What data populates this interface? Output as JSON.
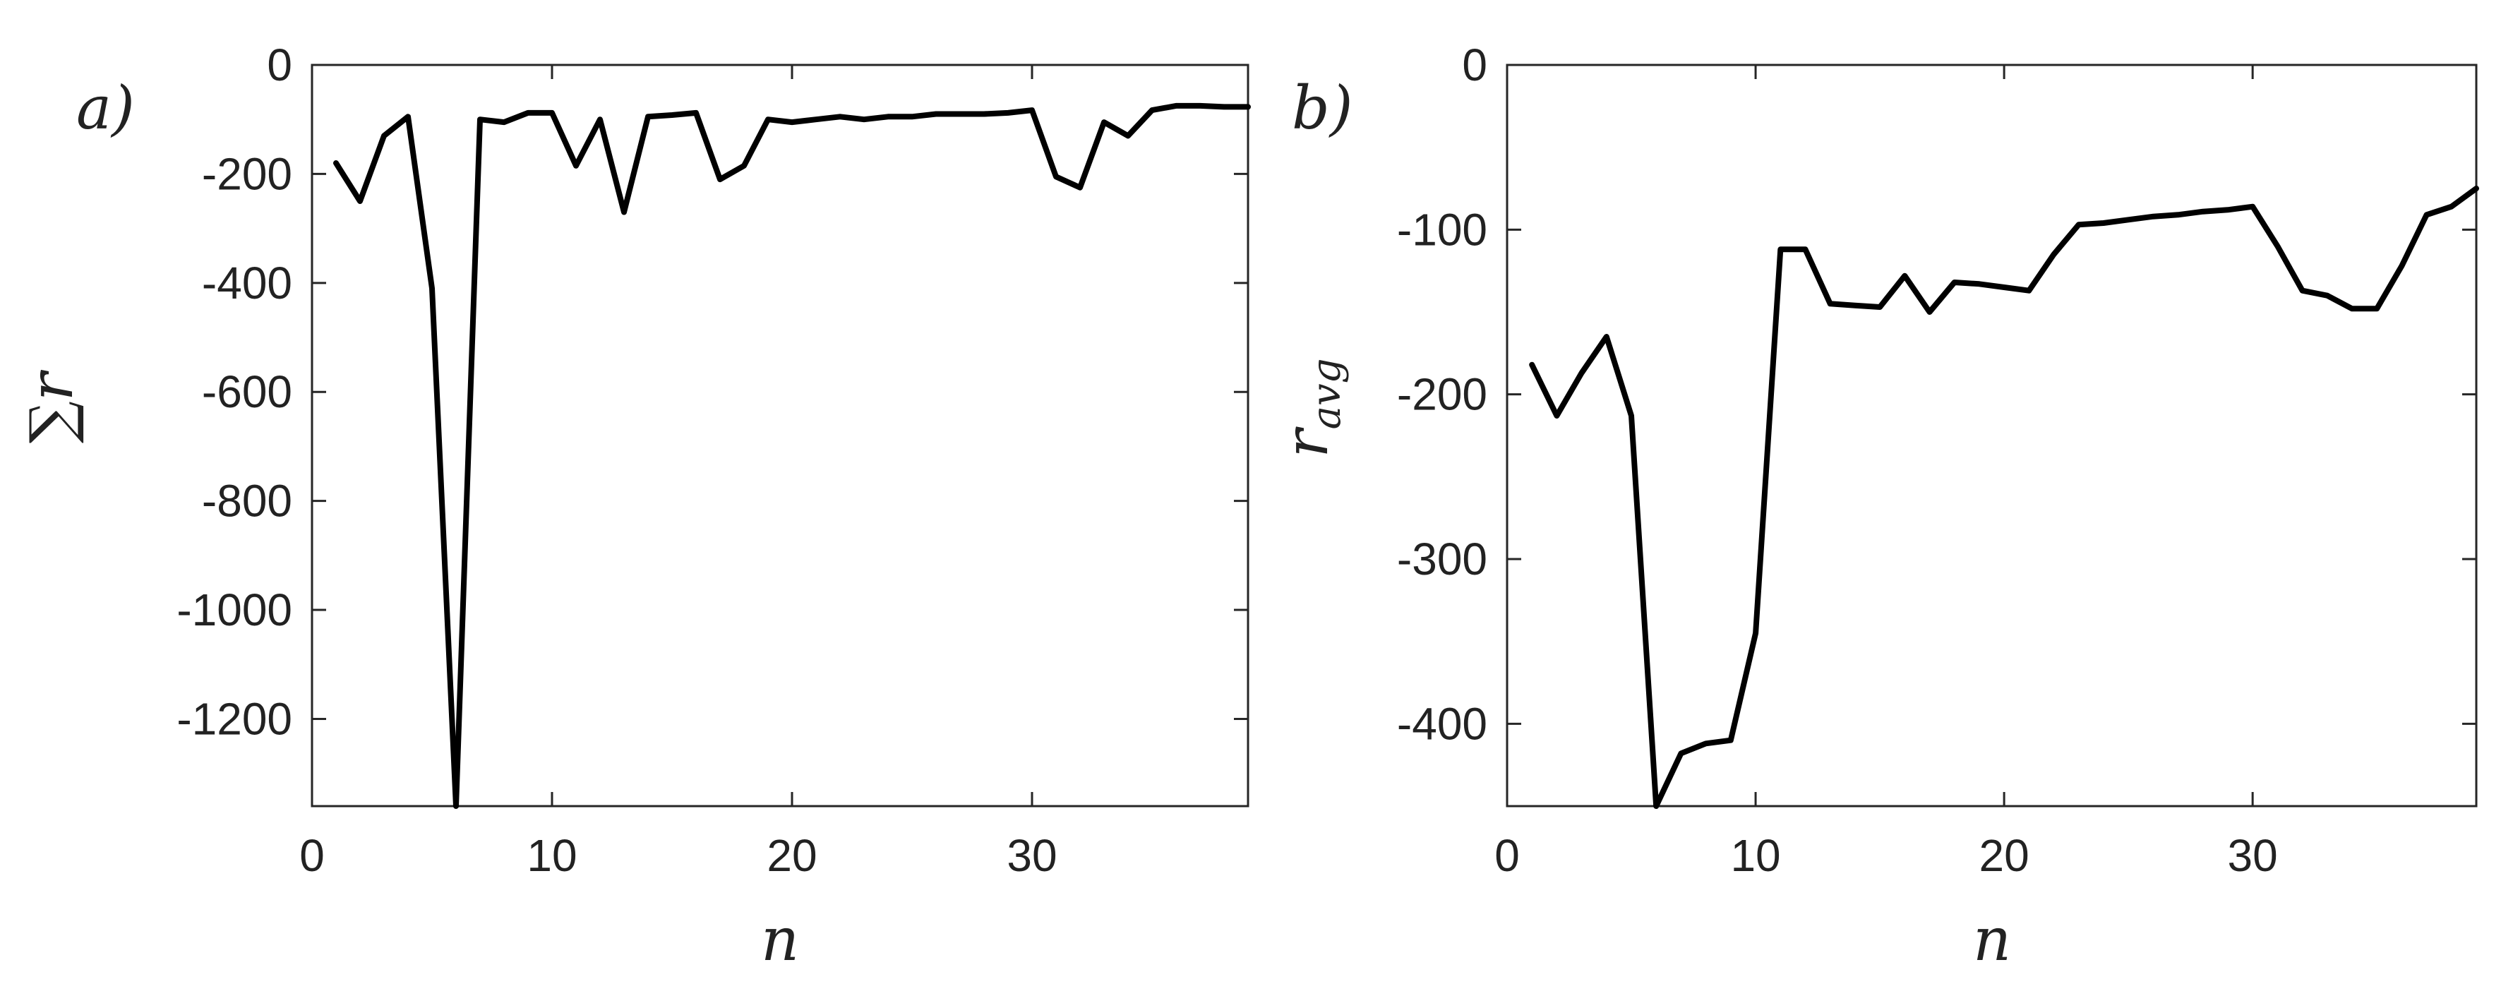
{
  "chart_data": [
    {
      "type": "line",
      "panel_label": "a)",
      "xlabel": "n",
      "ylabel": "∑r",
      "xlim": [
        0,
        39
      ],
      "ylim": [
        -1360,
        0
      ],
      "xticks": [
        0,
        10,
        20,
        30
      ],
      "yticks": [
        0,
        -200,
        -400,
        -600,
        -800,
        -1000,
        -1200
      ],
      "grid": false,
      "series": [
        {
          "color": "#000000",
          "x": [
            1,
            2,
            3,
            4,
            5,
            6,
            7,
            8,
            9,
            10,
            11,
            12,
            13,
            14,
            15,
            16,
            17,
            18,
            19,
            20,
            21,
            22,
            23,
            24,
            25,
            26,
            27,
            28,
            29,
            30,
            31,
            32,
            33,
            34,
            35,
            36,
            37,
            38,
            39
          ],
          "y": [
            -180,
            -250,
            -130,
            -95,
            -410,
            -1360,
            -100,
            -105,
            -88,
            -88,
            -185,
            -100,
            -270,
            -95,
            -92,
            -88,
            -210,
            -185,
            -100,
            -105,
            -100,
            -95,
            -100,
            -95,
            -95,
            -90,
            -90,
            -90,
            -88,
            -83,
            -205,
            -225,
            -105,
            -130,
            -83,
            -75,
            -75,
            -77,
            -77
          ]
        }
      ]
    },
    {
      "type": "line",
      "panel_label": "b)",
      "xlabel": "n",
      "ylabel_main": "r",
      "ylabel_sub": "avg",
      "xlim": [
        0,
        39
      ],
      "ylim": [
        -450,
        0
      ],
      "xticks": [
        0,
        10,
        20,
        30
      ],
      "yticks": [
        0,
        -100,
        -200,
        -300,
        -400
      ],
      "grid": false,
      "series": [
        {
          "color": "#000000",
          "x": [
            1,
            2,
            3,
            4,
            5,
            6,
            7,
            8,
            9,
            10,
            11,
            12,
            13,
            14,
            15,
            16,
            17,
            18,
            19,
            20,
            21,
            22,
            23,
            24,
            25,
            26,
            27,
            28,
            29,
            30,
            31,
            32,
            33,
            34,
            35,
            36,
            37,
            38,
            39
          ],
          "y": [
            -182,
            -213,
            -187,
            -165,
            -213,
            -450,
            -418,
            -412,
            -410,
            -345,
            -112,
            -112,
            -145,
            -146,
            -147,
            -128,
            -150,
            -132,
            -133,
            -135,
            -137,
            -115,
            -97,
            -96,
            -94,
            -92,
            -91,
            -89,
            -88,
            -86,
            -110,
            -137,
            -140,
            -148,
            -148,
            -122,
            -91,
            -86,
            -75
          ]
        }
      ]
    }
  ]
}
